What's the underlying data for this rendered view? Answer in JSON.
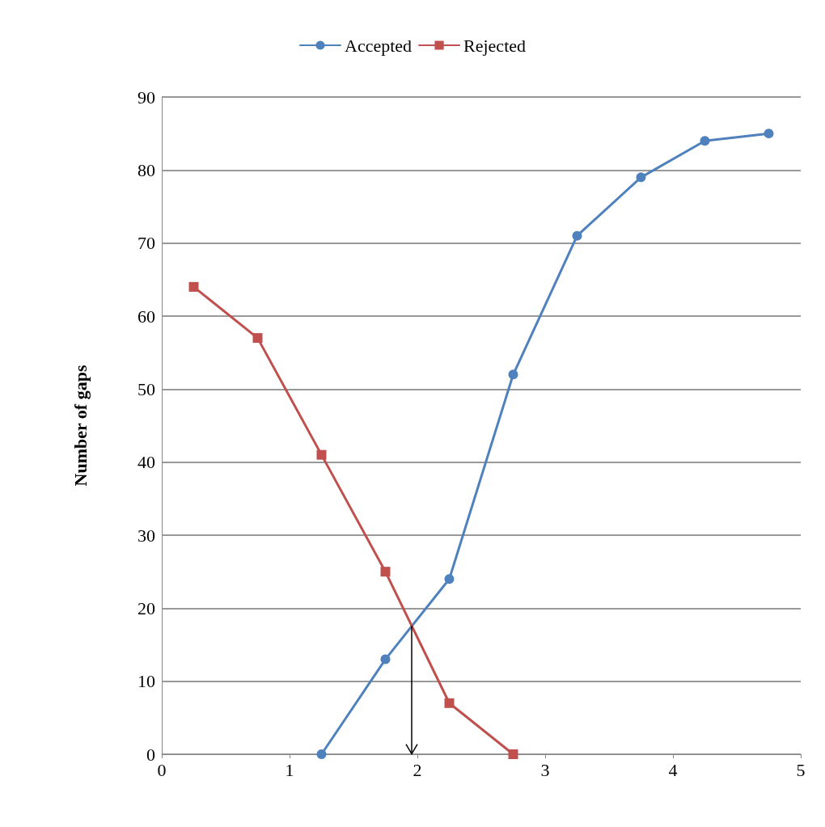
{
  "chart_data": {
    "type": "line",
    "ylabel": "Number of gaps",
    "xlim": [
      0,
      5
    ],
    "xticks": [
      0,
      1,
      2,
      3,
      4,
      5
    ],
    "ylim": [
      0,
      90
    ],
    "yticks": [
      0,
      10,
      20,
      30,
      40,
      50,
      60,
      70,
      80,
      90
    ],
    "grid": "y",
    "legend": "top",
    "series": [
      {
        "name": "Accepted",
        "color": "#4f81bd",
        "marker": "circle",
        "line_style": "solid",
        "x": [
          1.25,
          1.75,
          2.25,
          2.75,
          3.25,
          3.75,
          4.25,
          4.75
        ],
        "values": [
          0,
          13,
          24,
          52,
          71,
          79,
          84,
          85
        ]
      },
      {
        "name": "Rejected",
        "color": "#c0504d",
        "marker": "square",
        "line_style": "solid",
        "x": [
          0.25,
          0.75,
          1.25,
          1.75,
          2.25,
          2.75
        ],
        "values": [
          64,
          57,
          41,
          25,
          7,
          0
        ]
      }
    ]
  }
}
